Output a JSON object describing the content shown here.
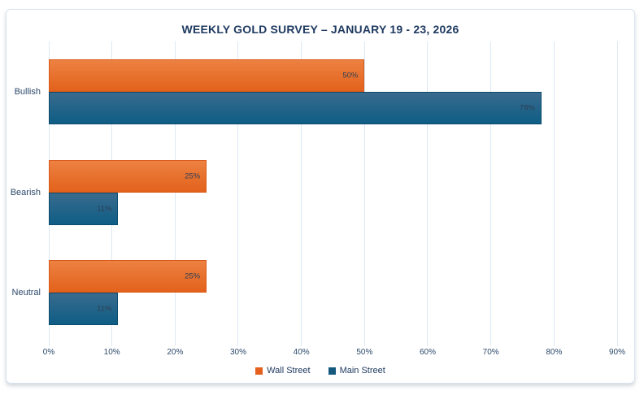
{
  "chart_data": {
    "type": "bar",
    "orientation": "horizontal",
    "title": "WEEKLY GOLD SURVEY – JANUARY 19 - 23, 2026",
    "categories": [
      "Bullish",
      "Bearish",
      "Neutral"
    ],
    "series": [
      {
        "name": "Wall Street",
        "values": [
          50,
          25,
          25
        ],
        "color_top": "#ED8243",
        "color_bottom": "#E2611B",
        "edge_color": "#DA5A18",
        "legend_color": "#E5601C"
      },
      {
        "name": "Main Street",
        "values": [
          78,
          11,
          11
        ],
        "color_top": "#3A6B8E",
        "color_bottom": "#0D5D85",
        "edge_color": "#0C4C6E",
        "legend_color": "#15597F"
      }
    ],
    "value_suffix": "%",
    "x_ticks": [
      "0%",
      "10%",
      "20%",
      "30%",
      "40%",
      "50%",
      "60%",
      "70%",
      "80%",
      "90%"
    ],
    "xlim": [
      0,
      90
    ],
    "grid": "vertical",
    "legend_position": "bottom-center",
    "data_labels": "inside-end"
  },
  "colors": {
    "card_border": "#D7E3EE",
    "grid_line": "#DCE8F4",
    "title_text": "#1F3A60",
    "axis_text": "#2D4A6B",
    "bar_label_text": "#2F3F53"
  }
}
